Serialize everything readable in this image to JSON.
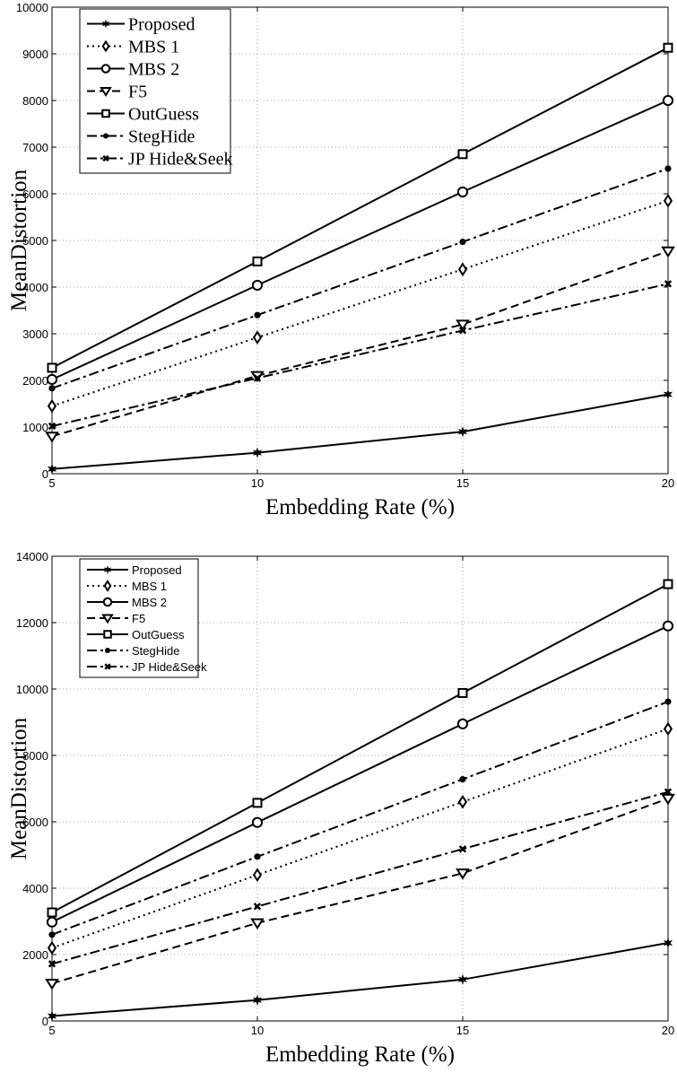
{
  "chart_data": [
    {
      "type": "line",
      "xlabel": "Embedding Rate (%)",
      "ylabel": "MeanDistortion",
      "x": [
        5,
        10,
        15,
        20
      ],
      "xlim": [
        5,
        20
      ],
      "ylim": [
        0,
        10000
      ],
      "xticks": [
        "5",
        "10",
        "15",
        "20"
      ],
      "yticks": [
        "0",
        "1000",
        "2000",
        "3000",
        "4000",
        "5000",
        "6000",
        "7000",
        "8000",
        "9000",
        "10000"
      ],
      "grid": true,
      "legend_position": "top-left",
      "series": [
        {
          "name": "Proposed",
          "values": [
            100,
            450,
            900,
            1700
          ],
          "dash": "solid",
          "marker": "star"
        },
        {
          "name": "MBS 1",
          "values": [
            1450,
            2920,
            4380,
            5850
          ],
          "dash": "dotted",
          "marker": "diamond"
        },
        {
          "name": "MBS 2",
          "values": [
            2020,
            4040,
            6040,
            8000
          ],
          "dash": "solid",
          "marker": "circle"
        },
        {
          "name": "F5",
          "values": [
            800,
            2100,
            3200,
            4770
          ],
          "dash": "dashed",
          "marker": "triangle-down"
        },
        {
          "name": "OutGuess",
          "values": [
            2270,
            4550,
            6850,
            9130
          ],
          "dash": "solid",
          "marker": "square"
        },
        {
          "name": "StegHide",
          "values": [
            1830,
            3400,
            4970,
            6540
          ],
          "dash": "dashdot",
          "marker": "dot"
        },
        {
          "name": "JP Hide&Seek",
          "values": [
            1020,
            2050,
            3070,
            4070
          ],
          "dash": "dashdot",
          "marker": "x"
        }
      ]
    },
    {
      "type": "line",
      "xlabel": "Embedding Rate (%)",
      "ylabel": "MeanDistortion",
      "x": [
        5,
        10,
        15,
        20
      ],
      "xlim": [
        5,
        20
      ],
      "ylim": [
        0,
        14000
      ],
      "xticks": [
        "5",
        "10",
        "15",
        "20"
      ],
      "yticks": [
        "0",
        "2000",
        "4000",
        "6000",
        "8000",
        "10000",
        "12000",
        "14000"
      ],
      "grid": true,
      "legend_position": "top-left",
      "series": [
        {
          "name": "Proposed",
          "values": [
            150,
            630,
            1250,
            2350
          ],
          "dash": "solid",
          "marker": "star"
        },
        {
          "name": "MBS 1",
          "values": [
            2200,
            4400,
            6600,
            8800
          ],
          "dash": "dotted",
          "marker": "diamond"
        },
        {
          "name": "MBS 2",
          "values": [
            2980,
            5980,
            8950,
            11900
          ],
          "dash": "solid",
          "marker": "circle"
        },
        {
          "name": "F5",
          "values": [
            1130,
            2950,
            4450,
            6700
          ],
          "dash": "dashed",
          "marker": "triangle-down"
        },
        {
          "name": "OutGuess",
          "values": [
            3270,
            6570,
            9880,
            13160
          ],
          "dash": "solid",
          "marker": "square"
        },
        {
          "name": "StegHide",
          "values": [
            2600,
            4950,
            7280,
            9620
          ],
          "dash": "dashdot",
          "marker": "dot"
        },
        {
          "name": "JP Hide&Seek",
          "values": [
            1720,
            3450,
            5180,
            6900
          ],
          "dash": "dashdot",
          "marker": "x"
        }
      ]
    }
  ]
}
